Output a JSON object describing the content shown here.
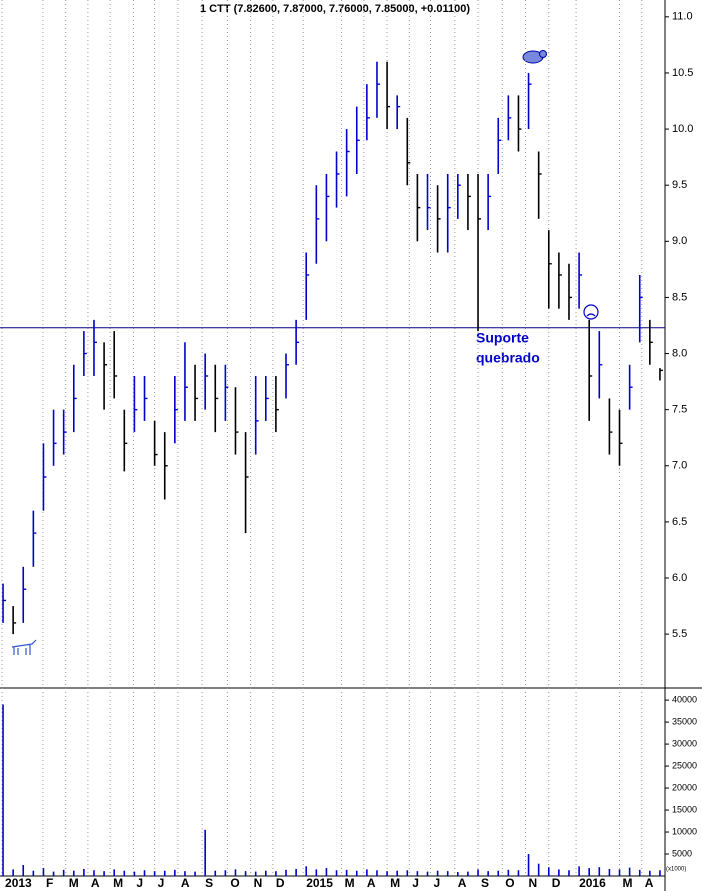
{
  "chart_data": {
    "type": "ohlc",
    "title": "1 CTT (7.82600, 7.87000, 7.76000, 7.85000, +0.01100)",
    "color": "#0000cc",
    "down_color": "#000000",
    "xlim": [
      -0.3,
      65.5
    ],
    "xticks": [
      {
        "value": -0.1,
        "label": "2013"
      },
      {
        "value": 3.95,
        "label": "F"
      },
      {
        "value": 6.2,
        "label": "M"
      },
      {
        "value": 8.4,
        "label": "A"
      },
      {
        "value": 10.6,
        "label": "M"
      },
      {
        "value": 12.9,
        "label": "J"
      },
      {
        "value": 15.0,
        "label": "J"
      },
      {
        "value": 17.3,
        "label": "A"
      },
      {
        "value": 19.7,
        "label": "S"
      },
      {
        "value": 22.2,
        "label": "O"
      },
      {
        "value": 24.5,
        "label": "N"
      },
      {
        "value": 26.7,
        "label": "D"
      },
      {
        "value": 29.7,
        "label": "2015"
      },
      {
        "value": 33.5,
        "label": "M"
      },
      {
        "value": 35.7,
        "label": "A"
      },
      {
        "value": 38.0,
        "label": "M"
      },
      {
        "value": 40.2,
        "label": "J"
      },
      {
        "value": 42.3,
        "label": "J"
      },
      {
        "value": 44.7,
        "label": "A"
      },
      {
        "value": 47.0,
        "label": "S"
      },
      {
        "value": 49.4,
        "label": "O"
      },
      {
        "value": 51.7,
        "label": "N"
      },
      {
        "value": 54.0,
        "label": "D"
      },
      {
        "value": 56.7,
        "label": "2016"
      },
      {
        "value": 61.0,
        "label": "M"
      },
      {
        "value": 63.2,
        "label": "A"
      }
    ],
    "ylim": [
      5.02,
      11.15
    ],
    "yticks": [
      {
        "value": 11,
        "label": "11.0"
      },
      10.5,
      {
        "value": 10,
        "label": "10.0"
      },
      9.5,
      {
        "value": 9,
        "label": "9.0"
      },
      8.5,
      {
        "value": 8,
        "label": "8.0"
      },
      7.5,
      {
        "value": 7,
        "label": "7.0"
      },
      6.5,
      {
        "value": 6,
        "label": "6.0"
      },
      5.5
    ],
    "high": [
      5.95,
      5.75,
      6.1,
      6.6,
      7.2,
      7.5,
      7.5,
      7.9,
      8.2,
      8.3,
      8.1,
      8.2,
      7.5,
      7.8,
      7.8,
      7.4,
      7.3,
      7.8,
      8.1,
      7.9,
      8.0,
      7.9,
      7.9,
      7.7,
      7.3,
      7.8,
      7.8,
      7.8,
      8.0,
      8.3,
      8.9,
      9.5,
      9.6,
      9.8,
      10.0,
      10.2,
      10.4,
      10.6,
      10.6,
      10.3,
      10.1,
      9.6,
      9.6,
      9.5,
      9.6,
      9.6,
      9.6,
      9.6,
      9.6,
      10.1,
      10.3,
      10.3,
      10.5,
      9.8,
      9.1,
      8.9,
      8.8,
      8.9,
      8.3,
      8.2,
      7.6,
      7.5,
      7.9,
      8.7,
      8.3,
      7.87
    ],
    "low": [
      5.6,
      5.5,
      5.6,
      6.1,
      6.6,
      7.0,
      7.1,
      7.3,
      7.8,
      7.8,
      7.5,
      7.6,
      6.95,
      7.3,
      7.4,
      7.0,
      6.7,
      7.2,
      7.4,
      7.4,
      7.5,
      7.3,
      7.4,
      7.1,
      6.4,
      7.1,
      7.4,
      7.3,
      7.6,
      7.9,
      8.3,
      8.8,
      9.0,
      9.3,
      9.4,
      9.6,
      9.9,
      10.1,
      10.0,
      10.0,
      9.5,
      9.0,
      9.1,
      8.9,
      8.9,
      9.2,
      9.1,
      8.2,
      9.1,
      9.6,
      9.9,
      9.8,
      10.0,
      9.2,
      8.4,
      8.4,
      8.3,
      8.4,
      7.4,
      7.6,
      7.1,
      7.0,
      7.5,
      8.1,
      7.9,
      7.76
    ],
    "close": [
      5.8,
      5.6,
      5.9,
      6.4,
      6.9,
      7.2,
      7.3,
      7.6,
      8.0,
      8.1,
      7.9,
      7.8,
      7.2,
      7.5,
      7.6,
      7.1,
      7.0,
      7.5,
      7.7,
      7.6,
      7.8,
      7.6,
      7.7,
      7.3,
      6.9,
      7.4,
      7.6,
      7.5,
      7.9,
      8.1,
      8.7,
      9.2,
      9.4,
      9.6,
      9.8,
      9.9,
      10.1,
      10.4,
      10.2,
      10.2,
      9.7,
      9.3,
      9.3,
      9.2,
      9.3,
      9.5,
      9.4,
      9.2,
      9.4,
      9.9,
      10.1,
      10.0,
      10.4,
      9.6,
      8.8,
      8.7,
      8.5,
      8.7,
      7.8,
      7.9,
      7.3,
      7.2,
      7.7,
      8.5,
      8.1,
      7.85
    ],
    "support_level": 8.23,
    "support_color": "#000080",
    "annotations": [
      "Suporte",
      "quebrado"
    ],
    "volume": {
      "values": [
        39000,
        1500,
        2500,
        1200,
        1800,
        1000,
        1400,
        1200,
        1600,
        1300,
        1100,
        1500,
        1200,
        1000,
        1300,
        1100,
        1200,
        1400,
        1100,
        1000,
        10500,
        1200,
        1300,
        1500,
        1100,
        1000,
        1200,
        1100,
        1400,
        1600,
        2200,
        1500,
        1800,
        1300,
        1400,
        1200,
        1500,
        1300,
        1100,
        1200,
        1300,
        1100,
        1000,
        1200,
        1100,
        900,
        1000,
        1500,
        1100,
        1200,
        1400,
        1300,
        5000,
        2800,
        2000,
        1500,
        1300,
        2200,
        1800,
        2000,
        1600,
        1500,
        1900,
        1400,
        1200,
        1300
      ],
      "ylim": [
        0,
        42300
      ],
      "yticks": [
        40000,
        35000,
        30000,
        25000,
        20000,
        15000,
        10000,
        5000
      ],
      "unit_label": "(x1000)"
    }
  }
}
